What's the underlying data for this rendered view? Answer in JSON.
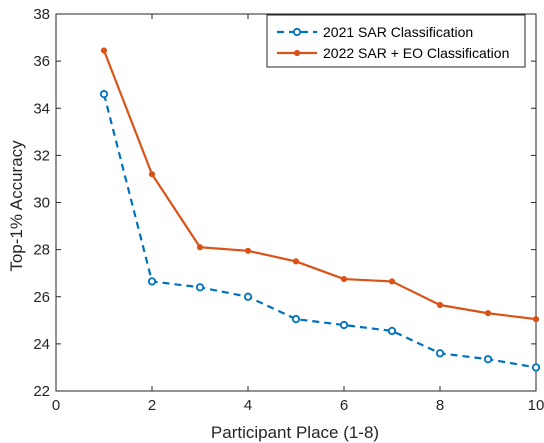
{
  "chart_data": {
    "type": "line",
    "title": "",
    "xlabel": "Participant Place (1-8)",
    "ylabel": "Top-1% Accuracy",
    "xlim": [
      0,
      10
    ],
    "ylim": [
      22,
      38
    ],
    "xticks": [
      0,
      2,
      4,
      6,
      8,
      10
    ],
    "yticks": [
      22,
      24,
      26,
      28,
      30,
      32,
      34,
      36,
      38
    ],
    "grid": false,
    "legend_position": "top-right",
    "series": [
      {
        "name": "2021 SAR Classification",
        "color": "#0072BD",
        "style": "dashed",
        "marker": "open-circle",
        "x": [
          1,
          2,
          3,
          4,
          5,
          6,
          7,
          8,
          9,
          10
        ],
        "y": [
          34.6,
          26.65,
          26.4,
          26.0,
          25.05,
          24.8,
          24.55,
          23.6,
          23.35,
          23.0
        ]
      },
      {
        "name": "2022 SAR + EO Classification",
        "color": "#D95319",
        "style": "solid",
        "marker": "filled-dot",
        "x": [
          1,
          2,
          3,
          4,
          5,
          6,
          7,
          8,
          9,
          10
        ],
        "y": [
          36.45,
          31.2,
          28.1,
          27.95,
          27.5,
          26.75,
          26.65,
          25.65,
          25.3,
          25.05
        ]
      }
    ]
  }
}
